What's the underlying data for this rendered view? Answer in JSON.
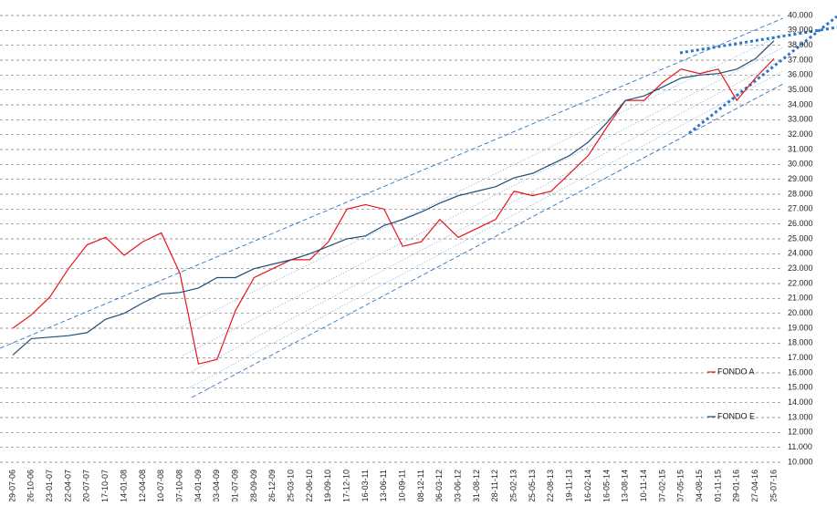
{
  "chart_data": {
    "type": "line",
    "categories": [
      "29-07-06",
      "26-10-06",
      "23-01-07",
      "22-04-07",
      "20-07-07",
      "17-10-07",
      "14-01-08",
      "12-04-08",
      "10-07-08",
      "07-10-08",
      "04-01-09",
      "03-04-09",
      "01-07-09",
      "28-09-09",
      "26-12-09",
      "25-03-10",
      "22-06-10",
      "19-09-10",
      "17-12-10",
      "16-03-11",
      "13-06-11",
      "10-09-11",
      "08-12-11",
      "06-03-12",
      "03-06-12",
      "31-08-12",
      "28-11-12",
      "25-02-13",
      "25-05-13",
      "22-08-13",
      "19-11-13",
      "16-02-14",
      "16-05-14",
      "13-08-14",
      "10-11-14",
      "07-02-15",
      "07-05-15",
      "04-08-15",
      "01-11-15",
      "29-01-16",
      "27-04-16",
      "25-07-16"
    ],
    "series": [
      {
        "name": "FONDO A",
        "color": "#e8141c",
        "values": [
          19000,
          19900,
          21100,
          23000,
          24600,
          25100,
          23900,
          24800,
          25400,
          22700,
          16600,
          16900,
          20200,
          22400,
          23000,
          23600,
          23600,
          24800,
          27000,
          27300,
          27000,
          24500,
          24800,
          26300,
          25100,
          25700,
          26300,
          28200,
          27900,
          28200,
          29400,
          30600,
          32500,
          34300,
          34300,
          35500,
          36400,
          36100,
          36400,
          34300,
          35800,
          37100
        ]
      },
      {
        "name": "FONDO E",
        "color": "#1f4e79",
        "values": [
          17200,
          18300,
          18400,
          18500,
          18700,
          19600,
          20000,
          20700,
          21300,
          21400,
          21700,
          22400,
          22400,
          23000,
          23300,
          23600,
          24000,
          24500,
          25000,
          25200,
          25900,
          26300,
          26800,
          27400,
          27900,
          28200,
          28500,
          29100,
          29400,
          30000,
          30600,
          31500,
          32800,
          34300,
          34600,
          35200,
          35800,
          36000,
          36100,
          36400,
          37100,
          38300
        ]
      }
    ],
    "ylim": [
      10000,
      40000
    ],
    "yticks": [
      {
        "value": 10000,
        "label": "10.000"
      },
      {
        "value": 11000,
        "label": "11.000"
      },
      {
        "value": 12000,
        "label": "12.000"
      },
      {
        "value": 13000,
        "label": "13.000"
      },
      {
        "value": 14000,
        "label": "14.000"
      },
      {
        "value": 15000,
        "label": "15.000"
      },
      {
        "value": 16000,
        "label": "16.000"
      },
      {
        "value": 17000,
        "label": "17.000"
      },
      {
        "value": 18000,
        "label": "18.000"
      },
      {
        "value": 19000,
        "label": "19.000"
      },
      {
        "value": 20000,
        "label": "20.000"
      },
      {
        "value": 21000,
        "label": "21.000"
      },
      {
        "value": 22000,
        "label": "22.000"
      },
      {
        "value": 23000,
        "label": "23.000"
      },
      {
        "value": 24000,
        "label": "24.000"
      },
      {
        "value": 25000,
        "label": "25.000"
      },
      {
        "value": 26000,
        "label": "26.000"
      },
      {
        "value": 27000,
        "label": "27.000"
      },
      {
        "value": 28000,
        "label": "28.000"
      },
      {
        "value": 29000,
        "label": "29.000"
      },
      {
        "value": 30000,
        "label": "30.000"
      },
      {
        "value": 31000,
        "label": "31.000"
      },
      {
        "value": 32000,
        "label": "32.000"
      },
      {
        "value": 33000,
        "label": "33.000"
      },
      {
        "value": 34000,
        "label": "34.000"
      },
      {
        "value": 35000,
        "label": "35.000"
      },
      {
        "value": 36000,
        "label": "36.000"
      },
      {
        "value": 37000,
        "label": "37.000"
      },
      {
        "value": 38000,
        "label": "38.000"
      },
      {
        "value": 39000,
        "label": "39.000"
      },
      {
        "value": 40000,
        "label": "40.000"
      }
    ],
    "grid": true
  }
}
